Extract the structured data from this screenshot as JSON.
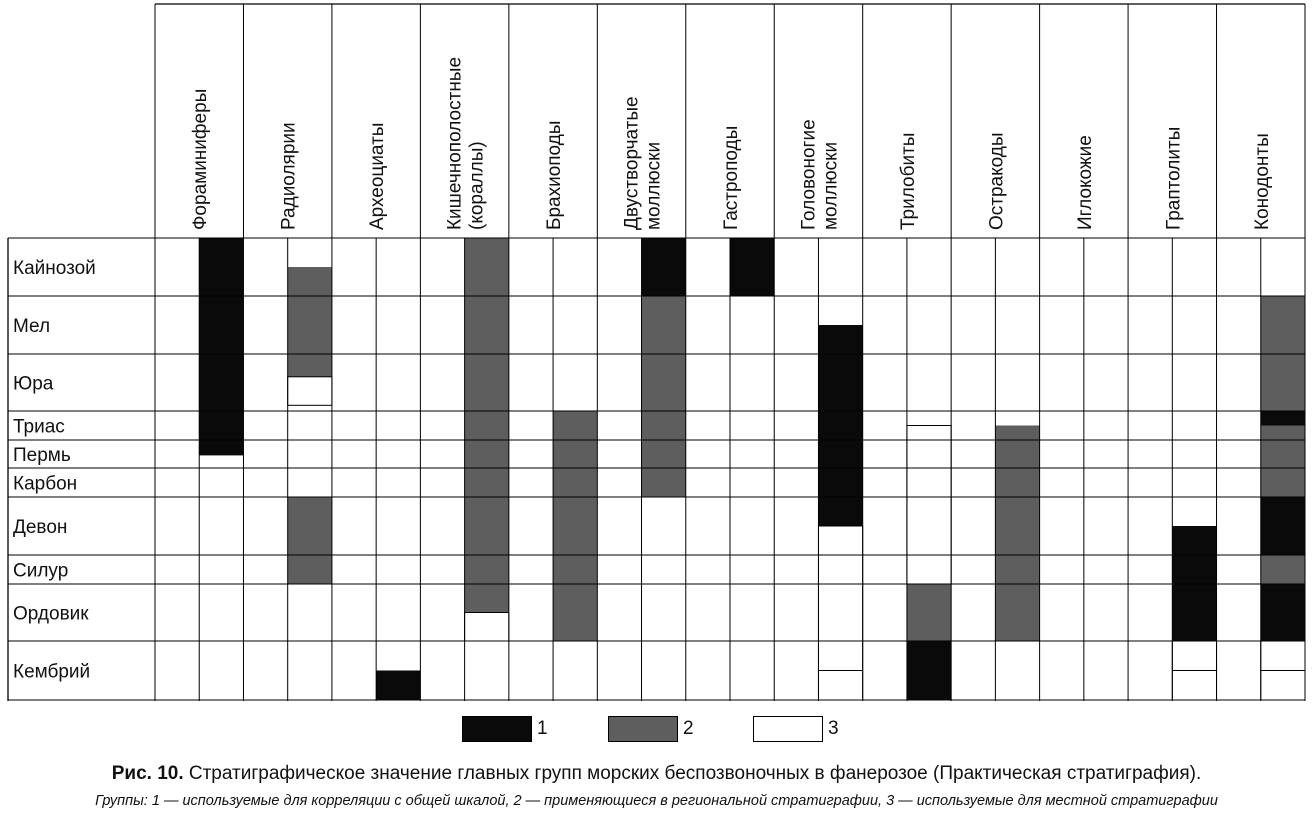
{
  "colors": {
    "black": "#0a0a0a",
    "gray": "#5e5e5e",
    "white": "#ffffff",
    "line": "#000000"
  },
  "groups": [
    {
      "name": "Фораминиферы"
    },
    {
      "name": "Радиолярии"
    },
    {
      "name": "Археоциаты"
    },
    {
      "name": "Кишечнополостные",
      "name2": "(кораллы)"
    },
    {
      "name": "Брахиоподы"
    },
    {
      "name": "Двустворчатые",
      "name2": "моллюски"
    },
    {
      "name": "Гастроподы"
    },
    {
      "name": "Головоногие",
      "name2": "моллюски"
    },
    {
      "name": "Трилобиты"
    },
    {
      "name": "Остракоды"
    },
    {
      "name": "Иглокожие"
    },
    {
      "name": "Граптолиты"
    },
    {
      "name": "Конодонты"
    }
  ],
  "periods": [
    "Кайнозой",
    "Мел",
    "Юра",
    "Триас",
    "Пермь",
    "Карбон",
    "Девон",
    "Силур",
    "Ордовик",
    "Кембрий"
  ],
  "chart_data": {
    "type": "table",
    "ranges": [
      {
        "group": 0,
        "start": 0,
        "end": 4.55,
        "category": 1
      },
      {
        "group": 1,
        "start": 0.5,
        "end": 2.4,
        "category": 2
      },
      {
        "group": 1,
        "start": 2.4,
        "end": 2.9,
        "category": 3
      },
      {
        "group": 1,
        "start": 6,
        "end": 8,
        "category": 2
      },
      {
        "group": 2,
        "start": 9.5,
        "end": 10,
        "category": 1
      },
      {
        "group": 3,
        "start": 0,
        "end": 8.5,
        "category": 2
      },
      {
        "group": 3,
        "start": 8.5,
        "end": 9,
        "category": 3
      },
      {
        "group": 4,
        "start": 3,
        "end": 9,
        "category": 2
      },
      {
        "group": 5,
        "start": 0,
        "end": 1,
        "category": 1
      },
      {
        "group": 5,
        "start": 1,
        "end": 6,
        "category": 2
      },
      {
        "group": 6,
        "start": 0,
        "end": 1,
        "category": 1
      },
      {
        "group": 7,
        "start": 1.5,
        "end": 6.5,
        "category": 1
      },
      {
        "group": 7,
        "start": 6.5,
        "end": 9.5,
        "category": 3
      },
      {
        "group": 7,
        "start": 9.5,
        "end": 10,
        "category": 3
      },
      {
        "group": 8,
        "start": 3.5,
        "end": 8,
        "category": 3
      },
      {
        "group": 8,
        "start": 8,
        "end": 9,
        "category": 2
      },
      {
        "group": 8,
        "start": 9,
        "end": 10,
        "category": 1
      },
      {
        "group": 9,
        "start": 3.5,
        "end": 9,
        "category": 2
      },
      {
        "group": 11,
        "start": 6.5,
        "end": 9,
        "category": 1
      },
      {
        "group": 11,
        "start": 9,
        "end": 9.5,
        "category": 3
      },
      {
        "group": 11,
        "start": 9.5,
        "end": 10,
        "category": 3
      },
      {
        "group": 12,
        "start": 1,
        "end": 3,
        "category": 2
      },
      {
        "group": 12,
        "start": 3,
        "end": 3.5,
        "category": 1
      },
      {
        "group": 12,
        "start": 3.5,
        "end": 6,
        "category": 2
      },
      {
        "group": 12,
        "start": 6,
        "end": 7,
        "category": 1
      },
      {
        "group": 12,
        "start": 7,
        "end": 8,
        "category": 2
      },
      {
        "group": 12,
        "start": 8,
        "end": 9,
        "category": 1
      },
      {
        "group": 12,
        "start": 9,
        "end": 9.5,
        "category": 3
      },
      {
        "group": 12,
        "start": 9.5,
        "end": 10,
        "category": 3
      }
    ]
  },
  "legend": [
    {
      "label": "1",
      "color": "#0a0a0a"
    },
    {
      "label": "2",
      "color": "#5e5e5e"
    },
    {
      "label": "3",
      "color": "#ffffff"
    }
  ],
  "caption": {
    "prefix": "Рис. 10.",
    "text": " Стратиграфическое значение главных групп морских беспозвоночных в фанерозое (Практическая стратиграфия).",
    "note": "Группы: 1 — используемые для корреляции с общей шкалой, 2 — применяющиеся в региональной стратиграфии, 3 — используемые для местной стратиграфии"
  }
}
